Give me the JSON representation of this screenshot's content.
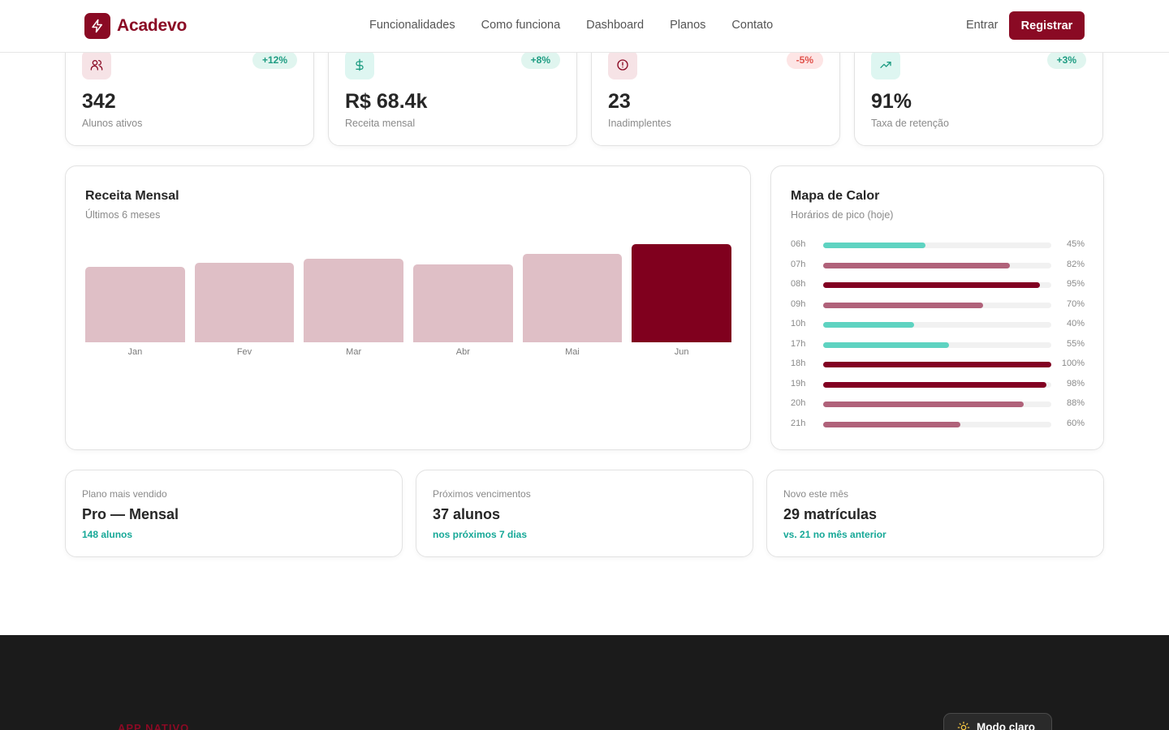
{
  "brand": {
    "name": "Acadevo",
    "icon": "lightning-icon",
    "color": "#8a0a24"
  },
  "nav": {
    "items": [
      "Funcionalidades",
      "Como funciona",
      "Dashboard",
      "Planos",
      "Contato"
    ],
    "login": "Entrar",
    "register": "Registrar"
  },
  "kpis": [
    {
      "icon": "users-icon",
      "badge": "+12%",
      "value": "342",
      "label": "Alunos ativos"
    },
    {
      "icon": "dollar-icon",
      "badge": "+8%",
      "value": "R$ 68.4k",
      "label": "Receita mensal"
    },
    {
      "icon": "alert-circle-icon",
      "badge": "-5%",
      "value": "23",
      "label": "Inadimplentes"
    },
    {
      "icon": "trending-up-icon",
      "badge": "+3%",
      "value": "91%",
      "label": "Taxa de retenção"
    }
  ],
  "revenue": {
    "title": "Receita Mensal",
    "subtitle": "Últimos 6 meses",
    "highlight_color": "#80001e",
    "base_color": "#dfbfc6"
  },
  "chart_data": {
    "type": "bar",
    "categories": [
      "Jan",
      "Fev",
      "Mar",
      "Abr",
      "Mai",
      "Jun"
    ],
    "values": [
      46,
      48.5,
      51,
      47.5,
      54,
      60
    ],
    "title": "Receita Mensal",
    "subtitle": "Últimos 6 meses",
    "ylim": [
      0,
      60
    ]
  },
  "heatmap": {
    "title": "Mapa de Calor",
    "subtitle": "Horários de pico (hoje)",
    "rows": [
      {
        "hour": "06h",
        "pct": "45%",
        "value": 45,
        "color": "#5ed3c1"
      },
      {
        "hour": "07h",
        "pct": "82%",
        "value": 82,
        "color": "#b0627a"
      },
      {
        "hour": "08h",
        "pct": "95%",
        "value": 95,
        "color": "#820022"
      },
      {
        "hour": "09h",
        "pct": "70%",
        "value": 70,
        "color": "#b0627a"
      },
      {
        "hour": "10h",
        "pct": "40%",
        "value": 40,
        "color": "#5ed3c1"
      },
      {
        "hour": "17h",
        "pct": "55%",
        "value": 55,
        "color": "#5ed3c1"
      },
      {
        "hour": "18h",
        "pct": "100%",
        "value": 100,
        "color": "#820022"
      },
      {
        "hour": "19h",
        "pct": "98%",
        "value": 98,
        "color": "#820022"
      },
      {
        "hour": "20h",
        "pct": "88%",
        "value": 88,
        "color": "#b0627a"
      },
      {
        "hour": "21h",
        "pct": "60%",
        "value": 60,
        "color": "#b0627a"
      }
    ]
  },
  "info_cards": [
    {
      "label": "Plano mais vendido",
      "value": "Pro — Mensal",
      "sub": "148 alunos"
    },
    {
      "label": "Próximos vencimentos",
      "value": "37 alunos",
      "sub": "nos próximos 7 dias"
    },
    {
      "label": "Novo este mês",
      "value": "29 matrículas",
      "sub": "vs. 21 no mês anterior"
    }
  ],
  "footer": {
    "tag": "APP NATIVO",
    "mode_button": "Modo claro",
    "mode_icon": "sun-icon"
  }
}
